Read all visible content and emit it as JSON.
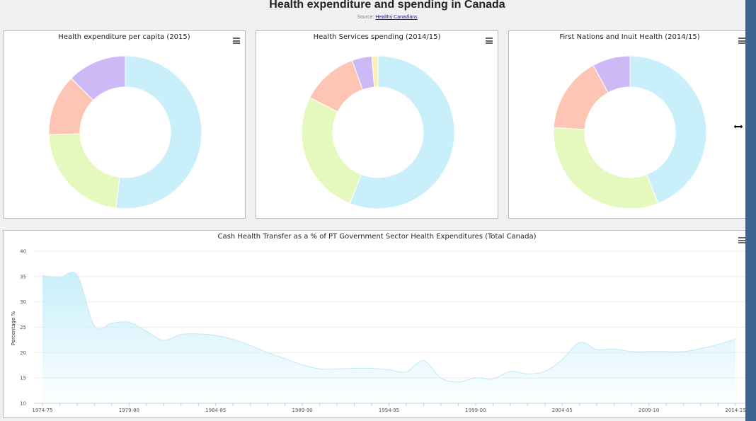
{
  "page": {
    "title": "Health expenditure and spending in Canada",
    "source_prefix": "Source:",
    "source_link": "Healthy Canadians"
  },
  "charts": [
    {
      "id": "donut1",
      "title": "Health expenditure per capita (2015)",
      "menu_icon": "hamburger-menu-icon"
    },
    {
      "id": "donut2",
      "title": "Health Services spending (2014/15)",
      "menu_icon": "hamburger-menu-icon"
    },
    {
      "id": "donut3",
      "title": "First Nations and Inuit Health (2014/15)",
      "menu_icon": "hamburger-menu-icon"
    },
    {
      "id": "area",
      "title": "Cash Health Transfer as a % of PT Government Sector Health Expenditures (Total Canada)",
      "menu_icon": "hamburger-menu-icon"
    }
  ],
  "colors": {
    "blue": "#c9effa",
    "green": "#e5f9be",
    "salmon": "#fec4b4",
    "purple": "#cdb9f6",
    "yellow": "#fbefb3",
    "edge": "#3c6592"
  },
  "chart_data": [
    {
      "type": "pie",
      "variant": "donut",
      "title": "Health expenditure per capita (2015)",
      "values": [
        52.0,
        22.5,
        13.0,
        12.5
      ],
      "colors": [
        "#c9effa",
        "#e5f9be",
        "#fec4b4",
        "#cdb9f6"
      ]
    },
    {
      "type": "pie",
      "variant": "donut",
      "title": "Health Services spending (2014/15)",
      "values": [
        56.0,
        26.5,
        12.0,
        4.2,
        1.3
      ],
      "colors": [
        "#c9effa",
        "#e5f9be",
        "#fec4b4",
        "#cdb9f6",
        "#fbefb3"
      ]
    },
    {
      "type": "pie",
      "variant": "donut",
      "title": "First Nations and Inuit Health (2014/15)",
      "values": [
        44.0,
        32.0,
        16.0,
        8.0
      ],
      "colors": [
        "#c9effa",
        "#e5f9be",
        "#fec4b4",
        "#cdb9f6"
      ]
    },
    {
      "type": "area",
      "title": "Cash Health Transfer as a % of PT Government Sector Health Expenditures (Total Canada)",
      "ylabel": "Percentage %",
      "ylim": [
        10,
        40
      ],
      "yticks": [
        10,
        15,
        20,
        25,
        30,
        35,
        40
      ],
      "grid": true,
      "legend": "none",
      "xlabels": [
        "1974-75",
        "1979-80",
        "1984-85",
        "1989-90",
        "1994-95",
        "1999-00",
        "2004-05",
        "2009-10",
        "2014-15"
      ],
      "x": [
        "1974-75",
        "1975-76",
        "1976-77",
        "1977-78",
        "1978-79",
        "1979-80",
        "1980-81",
        "1981-82",
        "1982-83",
        "1983-84",
        "1984-85",
        "1985-86",
        "1986-87",
        "1987-88",
        "1988-89",
        "1989-90",
        "1990-91",
        "1991-92",
        "1992-93",
        "1993-94",
        "1994-95",
        "1995-96",
        "1996-97",
        "1997-98",
        "1998-99",
        "1999-00",
        "2000-01",
        "2001-02",
        "2002-03",
        "2003-04",
        "2004-05",
        "2005-06",
        "2006-07",
        "2007-08",
        "2008-09",
        "2009-10",
        "2010-11",
        "2011-12",
        "2012-13",
        "2013-14",
        "2014-15"
      ],
      "values": [
        35.2,
        34.8,
        35.3,
        25.2,
        25.8,
        26.0,
        24.2,
        22.4,
        23.6,
        23.7,
        23.4,
        22.6,
        21.4,
        20.0,
        18.8,
        17.6,
        16.8,
        16.8,
        16.9,
        16.9,
        16.6,
        16.2,
        18.4,
        15.0,
        14.2,
        15.0,
        14.8,
        16.3,
        15.8,
        16.3,
        18.6,
        22.0,
        20.6,
        20.7,
        20.2,
        20.2,
        20.2,
        20.2,
        20.8,
        21.6,
        22.7
      ],
      "color": "#c9effa"
    }
  ]
}
